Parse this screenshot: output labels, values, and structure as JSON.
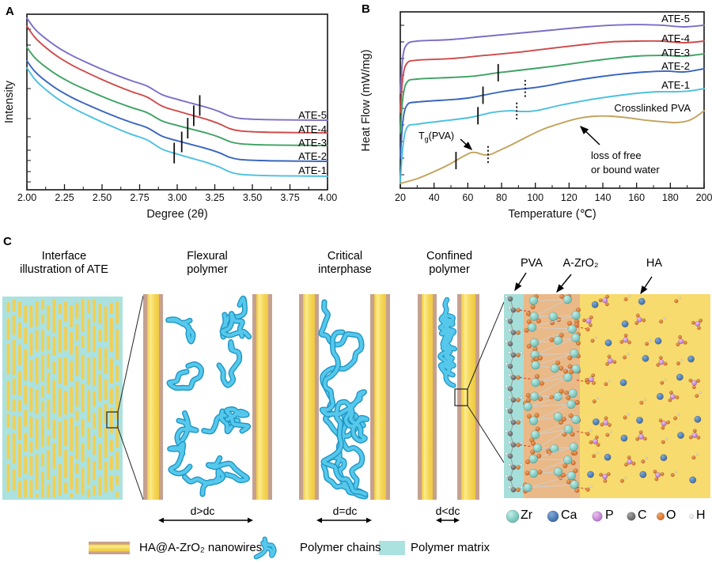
{
  "figure": {
    "panels": {
      "a": "A",
      "b": "B",
      "c": "C"
    }
  },
  "chart_data": [
    {
      "id": "A",
      "type": "line",
      "title": "",
      "xlabel": "Degree (2θ)",
      "ylabel": "Intensity",
      "xlim": [
        2.0,
        4.0
      ],
      "x_ticks": [
        "2.00",
        "2.25",
        "2.50",
        "2.75",
        "3.00",
        "3.25",
        "3.50",
        "3.75",
        "4.00"
      ],
      "grid": false,
      "legend_position": "inline-right",
      "y_unit": "arbitrary units (0-100 normalized)",
      "profile_x": [
        2.0,
        2.05,
        2.1,
        2.2,
        2.3,
        2.4,
        2.5,
        2.6,
        2.7,
        2.8,
        2.9,
        3.0,
        3.1,
        3.2,
        3.28,
        3.35,
        3.42,
        3.55,
        3.7,
        4.0
      ],
      "profile_p": [
        1.0,
        0.9,
        0.83,
        0.72,
        0.635,
        0.565,
        0.5,
        0.44,
        0.385,
        0.335,
        0.25,
        0.205,
        0.165,
        0.125,
        0.085,
        0.04,
        0.018,
        0.008,
        0.004,
        0.0
      ],
      "series": [
        {
          "name": "ATE-5",
          "color": "#7B6EC6",
          "tail": 39.6,
          "peak": 97.7
        },
        {
          "name": "ATE-4",
          "color": "#CF4A4A",
          "tail": 32.4,
          "peak": 93.2
        },
        {
          "name": "ATE-3",
          "color": "#3EA264",
          "tail": 25.2,
          "peak": 81.1
        },
        {
          "name": "ATE-2",
          "color": "#3865BE",
          "tail": 16.2,
          "peak": 73.4
        },
        {
          "name": "ATE-1",
          "color": "#4BC0DF",
          "tail": 7.7,
          "peak": 69.4
        }
      ],
      "peak_marks": [
        {
          "series": "ATE-1",
          "x": 2.98
        },
        {
          "series": "ATE-2",
          "x": 3.03
        },
        {
          "series": "ATE-3",
          "x": 3.07
        },
        {
          "series": "ATE-4",
          "x": 3.11
        },
        {
          "series": "ATE-5",
          "x": 3.15
        }
      ]
    },
    {
      "id": "B",
      "type": "line",
      "title": "",
      "xlabel": "Temperature (℃)",
      "ylabel": "Heat Flow (mW/mg)",
      "xlim": [
        20,
        200
      ],
      "x_ticks": [
        "20",
        "40",
        "60",
        "80",
        "100",
        "120",
        "140",
        "160",
        "180",
        "200"
      ],
      "grid": false,
      "legend_position": "inline-right",
      "y_unit": "arbitrary units (0-100 normalized)",
      "series": [
        {
          "name": "ATE-5",
          "color": "#7B6EC6",
          "T": [
            20,
            21.5,
            24,
            30,
            50,
            70,
            90,
            110,
            130,
            145,
            160,
            175,
            188,
            200
          ],
          "v": [
            53.8,
            74.4,
            81.6,
            83.4,
            84.3,
            86.1,
            87.9,
            89.7,
            91.5,
            92.4,
            92.8,
            92.4,
            91.5,
            92.4
          ]
        },
        {
          "name": "ATE-4",
          "color": "#CF4A4A",
          "T": [
            20,
            21.5,
            24,
            30,
            50,
            70,
            90,
            110,
            130,
            145,
            160,
            175,
            188,
            200
          ],
          "v": [
            43.0,
            62.8,
            70.9,
            72.6,
            73.5,
            75.3,
            77.1,
            79.4,
            81.6,
            83.0,
            83.4,
            83.4,
            82.5,
            83.4
          ]
        },
        {
          "name": "ATE-3",
          "color": "#3EA264",
          "T": [
            20,
            21.5,
            24,
            30,
            50,
            65,
            78,
            90,
            110,
            130,
            145,
            160,
            175,
            188,
            200
          ],
          "v": [
            31.4,
            51.1,
            60.1,
            61.9,
            62.8,
            63.7,
            65.5,
            66.8,
            69.1,
            71.7,
            73.5,
            74.9,
            75.3,
            74.9,
            76.2
          ]
        },
        {
          "name": "ATE-2",
          "color": "#3865BE",
          "T": [
            20,
            21.5,
            24,
            30,
            50,
            60,
            70,
            80,
            90,
            95,
            105,
            120,
            135,
            150,
            165,
            178,
            188,
            200
          ],
          "v": [
            17.0,
            37.7,
            47.1,
            48.9,
            50.2,
            51.1,
            52.9,
            54.7,
            56.1,
            56.5,
            57.8,
            60.5,
            62.8,
            64.6,
            65.9,
            66.4,
            65.9,
            67.7
          ]
        },
        {
          "name": "ATE-1",
          "color": "#4BC0DF",
          "T": [
            20,
            21.5,
            24,
            30,
            45,
            60,
            67,
            75,
            85,
            92,
            100,
            115,
            130,
            145,
            160,
            172,
            182,
            192,
            200
          ],
          "v": [
            3.6,
            23.3,
            34.5,
            36.3,
            38.1,
            39.9,
            41.3,
            43.0,
            43.9,
            43.5,
            43.9,
            47.1,
            49.8,
            52.0,
            53.8,
            54.7,
            54.7,
            55.2,
            56.5
          ]
        },
        {
          "name": "Crosslinked PVA",
          "color": "#C2A35C",
          "T": [
            20,
            30,
            40,
            48,
            53,
            58,
            62,
            65,
            68,
            71,
            74,
            78,
            85,
            95,
            105,
            115,
            125,
            135,
            145,
            155,
            165,
            175,
            183,
            190,
            195,
            200
          ],
          "v": [
            2.7,
            5.4,
            9.4,
            13.0,
            15.7,
            18.4,
            20.2,
            20.2,
            19.3,
            18.8,
            19.3,
            21.1,
            24.2,
            29.1,
            33.6,
            36.8,
            39.5,
            40.8,
            40.8,
            39.9,
            38.6,
            37.7,
            37.2,
            38.1,
            40.4,
            43.9
          ]
        }
      ],
      "solid_marks": [
        {
          "series": "Crosslinked PVA",
          "T": 53
        },
        {
          "series": "ATE-1",
          "T": 66
        },
        {
          "series": "ATE-2",
          "T": 69
        },
        {
          "series": "ATE-3",
          "T": 78
        }
      ],
      "dotted_marks": [
        {
          "series": "Crosslinked PVA",
          "T": 72
        },
        {
          "series": "ATE-1",
          "T": 89
        },
        {
          "series": "ATE-2",
          "T": 94
        }
      ],
      "annotations": {
        "tg": {
          "t": "T",
          "sub": "g",
          "rest": "(PVA)"
        },
        "loss_line1": "loss of free",
        "loss_line2": "or bound water"
      }
    }
  ],
  "panel_c": {
    "headers": [
      [
        "Interface",
        "illustration of ATE"
      ],
      [
        "Flexural",
        "polymer"
      ],
      [
        "Critical",
        "interphase"
      ],
      [
        "Confined",
        "polymer"
      ]
    ],
    "zone_labels": [
      "PVA",
      "A-ZrO₂",
      "HA"
    ],
    "gap_labels": [
      "d>dc",
      "d=dc",
      "d<dc"
    ],
    "atoms": [
      {
        "symbol": "Zr",
        "color": "#63C2B8",
        "r": 8.0
      },
      {
        "symbol": "Ca",
        "color": "#3A6BA8",
        "r": 7.0
      },
      {
        "symbol": "P",
        "color": "#CE8FD8",
        "r": 6.3
      },
      {
        "symbol": "C",
        "color": "#6A6A6A",
        "r": 5.3
      },
      {
        "symbol": "O",
        "color": "#E0762E",
        "r": 4.8
      },
      {
        "symbol": "H",
        "color": "#F5F5F5",
        "r": 2.6
      }
    ],
    "legend": [
      {
        "label": "HA@A-ZrO₂ nanowires",
        "swatch": "nanowire"
      },
      {
        "label": "Polymer chains",
        "swatch": "chain"
      },
      {
        "label": "Polymer matrix",
        "swatch": "matrix"
      }
    ],
    "colors": {
      "matrix": "#ABE2E0",
      "wire_edge": "#C6A18F",
      "wire_yellow": "#F4D658",
      "pva_bg": "#A6DFD9",
      "zro2_bg": "#EAB988",
      "ha_bg": "#F7DB6E",
      "chain": "#55C8EC",
      "chain_dark": "#1F96C4",
      "hbond": "#E23B2E"
    }
  }
}
